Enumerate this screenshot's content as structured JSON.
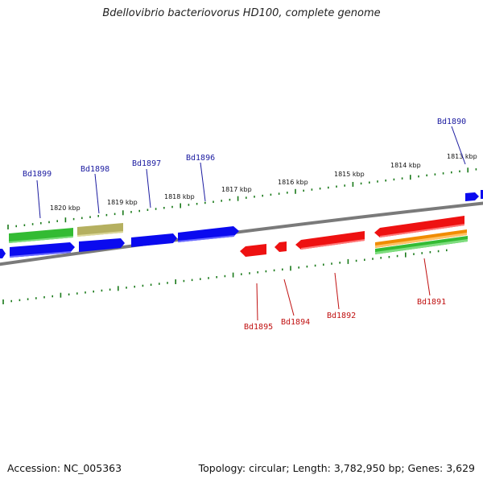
{
  "title": "Bdellovibrio bacteriovorus HD100, complete genome",
  "footer": {
    "accession": "Accession: NC_005363",
    "summary": "Topology: circular; Length: 3,782,950 bp; Genes: 3,629"
  },
  "scale_ticks": [
    "1820 kbp",
    "1819 kbp",
    "1818 kbp",
    "1817 kbp",
    "1816 kbp",
    "1815 kbp",
    "1814 kbp",
    "1813 kbp"
  ],
  "genes_forward_labels": [
    "Bd1899",
    "Bd1898",
    "Bd1897",
    "Bd1896",
    "Bd1890"
  ],
  "genes_reverse_labels": [
    "Bd1895",
    "Bd1894",
    "Bd1892",
    "Bd1891"
  ],
  "colors": {
    "forward": "#0a0aef",
    "reverse": "#ee1111",
    "backbone": "#7a7a7a",
    "tick": "#1a7a1a",
    "rna": "#33bb33",
    "pseudo": "#b5b060",
    "orange": "#f08c00",
    "label_forward": "#1a1aa0",
    "label_reverse": "#c01010"
  }
}
